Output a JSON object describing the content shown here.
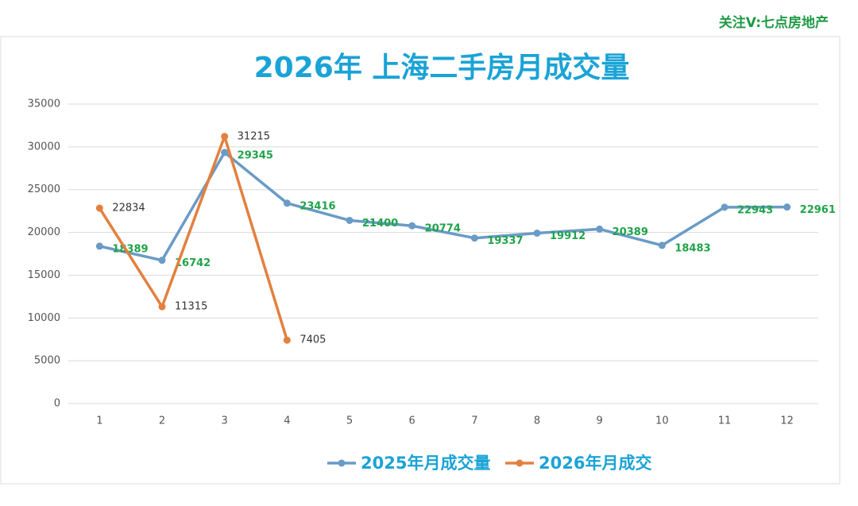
{
  "watermark": "关注V:七点房地产",
  "chart_data": {
    "type": "line",
    "title": "2026年 上海二手房月成交量",
    "categories": [
      "1",
      "2",
      "3",
      "4",
      "5",
      "6",
      "7",
      "8",
      "9",
      "10",
      "11",
      "12"
    ],
    "series": [
      {
        "name": "2025年月成交量",
        "color": "#6a9bc6",
        "values": [
          18389,
          16742,
          29345,
          23416,
          21400,
          20774,
          19337,
          19912,
          20389,
          18483,
          22943,
          22961
        ]
      },
      {
        "name": "2026年月成交",
        "color": "#e3803f",
        "values": [
          22834,
          11315,
          31215,
          7405,
          null,
          null,
          null,
          null,
          null,
          null,
          null,
          null
        ]
      }
    ],
    "ylim": [
      0,
      35000
    ],
    "yticks": [
      0,
      5000,
      10000,
      15000,
      20000,
      25000,
      30000,
      35000
    ],
    "grid": true,
    "legend": "bottom"
  }
}
